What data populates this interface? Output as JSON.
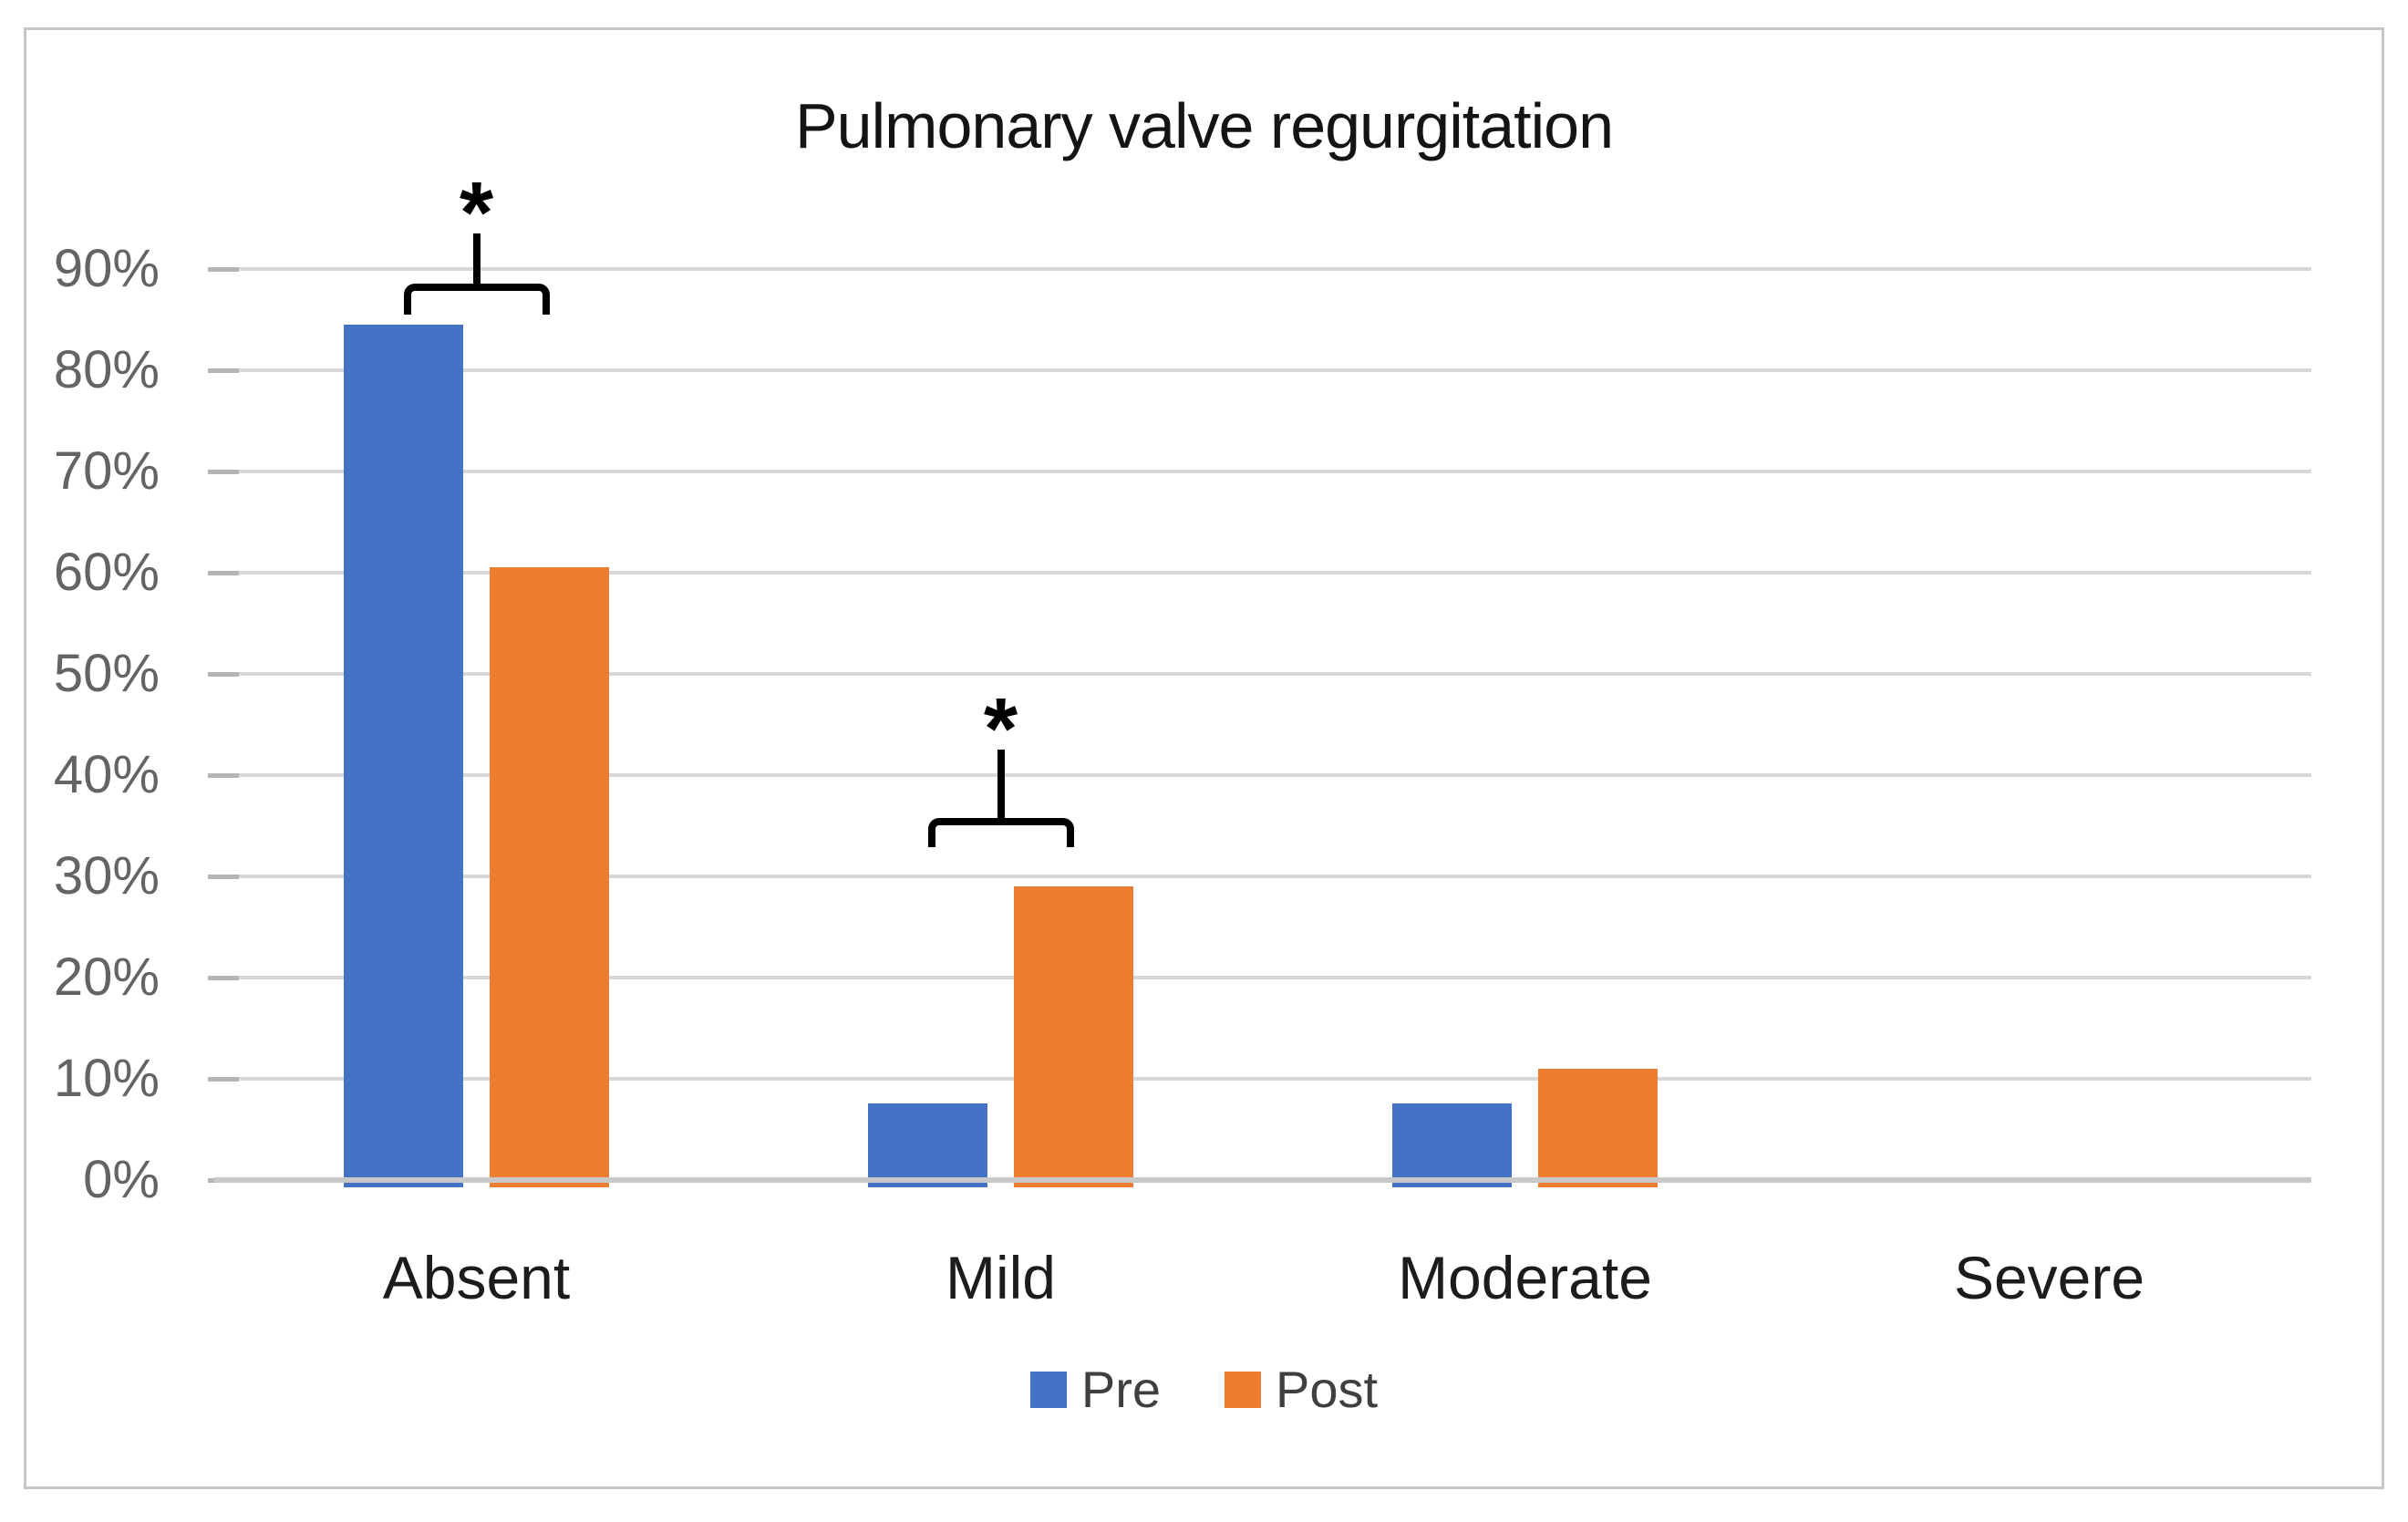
{
  "title": "Pulmonary valve regurgitation",
  "chart_data": {
    "type": "bar",
    "title": "Pulmonary valve regurgitation",
    "categories": [
      "Absent",
      "Mild",
      "Moderate",
      "Severe"
    ],
    "series": [
      {
        "name": "Pre",
        "color": "#4472C4",
        "values": [
          84.5,
          7.6,
          7.6,
          0
        ]
      },
      {
        "name": "Post",
        "color": "#ED7D31",
        "values": [
          60.5,
          29.0,
          11.0,
          0
        ]
      }
    ],
    "y_axis": {
      "min": 0,
      "max": 100,
      "step": 10,
      "unit": "%",
      "tick_labels": [
        "0%",
        "10%",
        "20%",
        "30%",
        "40%",
        "50%",
        "60%",
        "70%",
        "80%",
        "90%"
      ]
    },
    "grid": true,
    "legend": {
      "position": "bottom",
      "entries": [
        "Pre",
        "Post"
      ]
    },
    "annotations": [
      {
        "category": "Absent",
        "marker": "*",
        "bracket_y_pct": 88.6,
        "tick_drop_pct": 3.1,
        "stem_top_pct": 93.5
      },
      {
        "category": "Mild",
        "marker": "*",
        "bracket_y_pct": 35.8,
        "tick_drop_pct": 2.9,
        "stem_top_pct": 42.5
      }
    ],
    "colors": {
      "pre": "#4472C4",
      "post": "#ED7D31",
      "gridline": "#d8d8d8",
      "axis_line": "#c9c9c9",
      "y_label": "#646464",
      "category_label": "#1c1c1c",
      "legend_label": "#3f3f3f",
      "title": "#141414",
      "frame_border": "#c6c6c6",
      "annotation": "#000000"
    }
  }
}
